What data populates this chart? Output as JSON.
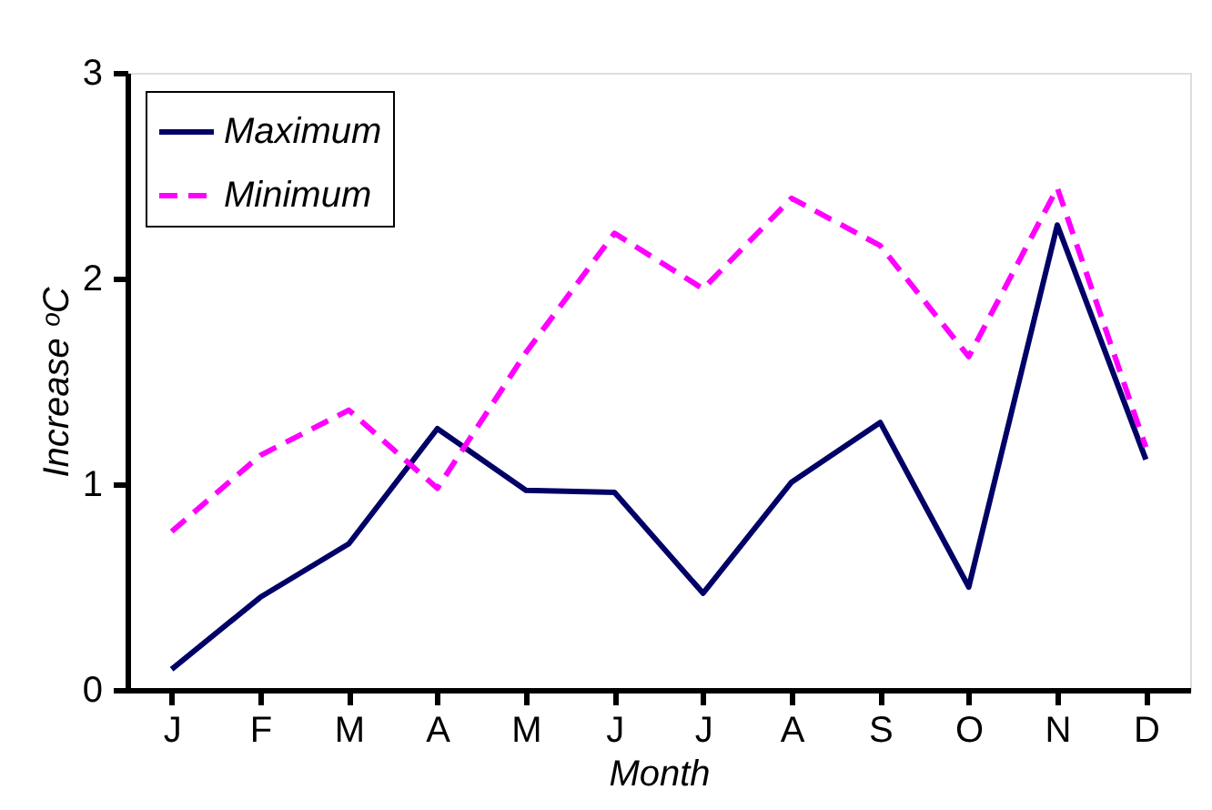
{
  "chart_data": {
    "type": "line",
    "xlabel": "Month",
    "ylabel": "Increase ᵒC",
    "categories": [
      "J",
      "F",
      "M",
      "A",
      "M",
      "J",
      "J",
      "A",
      "S",
      "O",
      "N",
      "D"
    ],
    "series": [
      {
        "name": "Maximum",
        "color": "#000066",
        "line_style": "solid",
        "values": [
          0.1,
          0.45,
          0.71,
          1.27,
          0.97,
          0.96,
          0.47,
          1.01,
          1.3,
          0.5,
          2.26,
          1.12
        ]
      },
      {
        "name": "Minimum",
        "color": "#ff00ff",
        "line_style": "dashed",
        "values": [
          0.77,
          1.14,
          1.36,
          0.98,
          1.64,
          2.22,
          1.95,
          2.39,
          2.16,
          1.62,
          2.44,
          1.18
        ]
      }
    ],
    "ylim": [
      0,
      3
    ],
    "yticks": [
      0,
      1,
      2,
      3
    ],
    "grid": false,
    "legend": "top left",
    "marker": "none"
  }
}
